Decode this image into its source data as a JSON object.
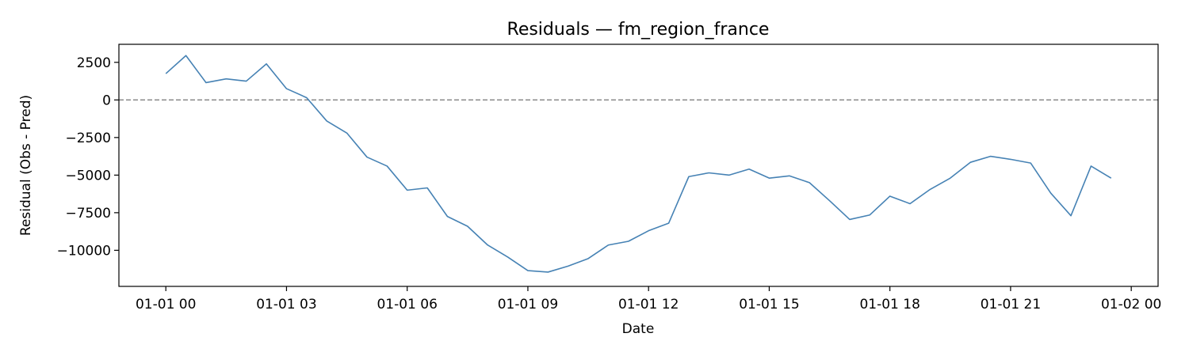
{
  "chart_data": {
    "type": "line",
    "title": "Residuals — fm_region_france",
    "xlabel": "Date",
    "ylabel": "Residual (Obs - Pred)",
    "x_ticks": [
      "01-01 00",
      "01-01 03",
      "01-01 06",
      "01-01 09",
      "01-01 12",
      "01-01 15",
      "01-01 18",
      "01-01 21",
      "01-02 00"
    ],
    "y_ticks": [
      2500,
      0,
      -2500,
      -5000,
      -7500,
      -10000
    ],
    "y_tick_labels": [
      "2500",
      "0",
      "−2500",
      "−5000",
      "−7500",
      "−10000"
    ],
    "xlim": [
      "2024-12-31T22:50",
      "2025-01-02T00:40"
    ],
    "ylim": [
      -12400,
      3700
    ],
    "x_start": "01-01 00:00",
    "x_step_minutes": 30,
    "reference_line": {
      "y": 0,
      "style": "dashed",
      "color": "#808080"
    },
    "series": [
      {
        "name": "",
        "color": "#4682b4",
        "values": [
          1750,
          2950,
          1150,
          1400,
          1250,
          2400,
          750,
          150,
          -1400,
          -2200,
          -3800,
          -4400,
          -6000,
          -5850,
          -7750,
          -8400,
          -9650,
          -10450,
          -11350,
          -11450,
          -11050,
          -10550,
          -9650,
          -9400,
          -8700,
          -8200,
          -5100,
          -4850,
          -5000,
          -4600,
          -5200,
          -5050,
          -5500,
          -6700,
          -7950,
          -7650,
          -6400,
          -6900,
          -5950,
          -5200,
          -4150,
          -3750,
          -3950,
          -4200,
          -6200,
          -7700,
          -4400,
          -5200
        ]
      }
    ],
    "grid": false,
    "legend": "none"
  }
}
